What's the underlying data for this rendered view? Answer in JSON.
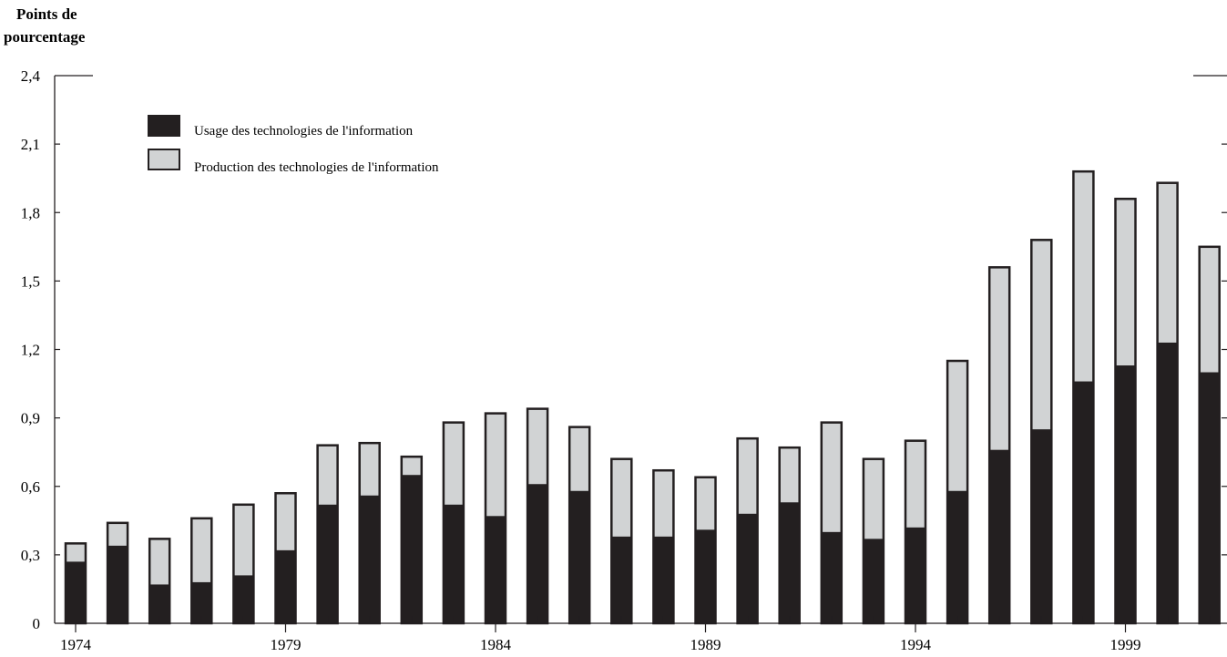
{
  "chart_data": {
    "type": "bar",
    "stacked": true,
    "ylabel_line1": "Points de",
    "ylabel_line2": "pourcentage",
    "ylim": [
      0,
      2.4
    ],
    "y_ticks": [
      "0",
      "0,3",
      "0,6",
      "0,9",
      "1,2",
      "1,5",
      "1,8",
      "2,1",
      "2,4"
    ],
    "x_tick_labels": [
      "1974",
      "1979",
      "1984",
      "1989",
      "1994",
      "1999"
    ],
    "legend_position": "top-left",
    "categories": [
      1974,
      1975,
      1976,
      1977,
      1978,
      1979,
      1980,
      1981,
      1982,
      1983,
      1984,
      1985,
      1986,
      1987,
      1988,
      1989,
      1990,
      1991,
      1992,
      1993,
      1994,
      1995,
      1996,
      1997,
      1998,
      1999,
      2000,
      2001
    ],
    "series": [
      {
        "name": "Usage des technologies de l'information",
        "color": "#231f20",
        "values": [
          0.27,
          0.34,
          0.17,
          0.18,
          0.21,
          0.32,
          0.52,
          0.56,
          0.65,
          0.52,
          0.47,
          0.61,
          0.58,
          0.38,
          0.38,
          0.41,
          0.48,
          0.53,
          0.4,
          0.37,
          0.42,
          0.58,
          0.76,
          0.85,
          1.06,
          1.13,
          1.23,
          1.1
        ]
      },
      {
        "name": "Production des technologies de l'information",
        "color": "#d1d3d4",
        "values": [
          0.08,
          0.1,
          0.2,
          0.28,
          0.31,
          0.25,
          0.26,
          0.23,
          0.08,
          0.36,
          0.45,
          0.33,
          0.28,
          0.34,
          0.29,
          0.23,
          0.33,
          0.24,
          0.48,
          0.35,
          0.38,
          0.57,
          0.8,
          0.83,
          0.92,
          0.73,
          0.7,
          0.55
        ]
      }
    ]
  }
}
